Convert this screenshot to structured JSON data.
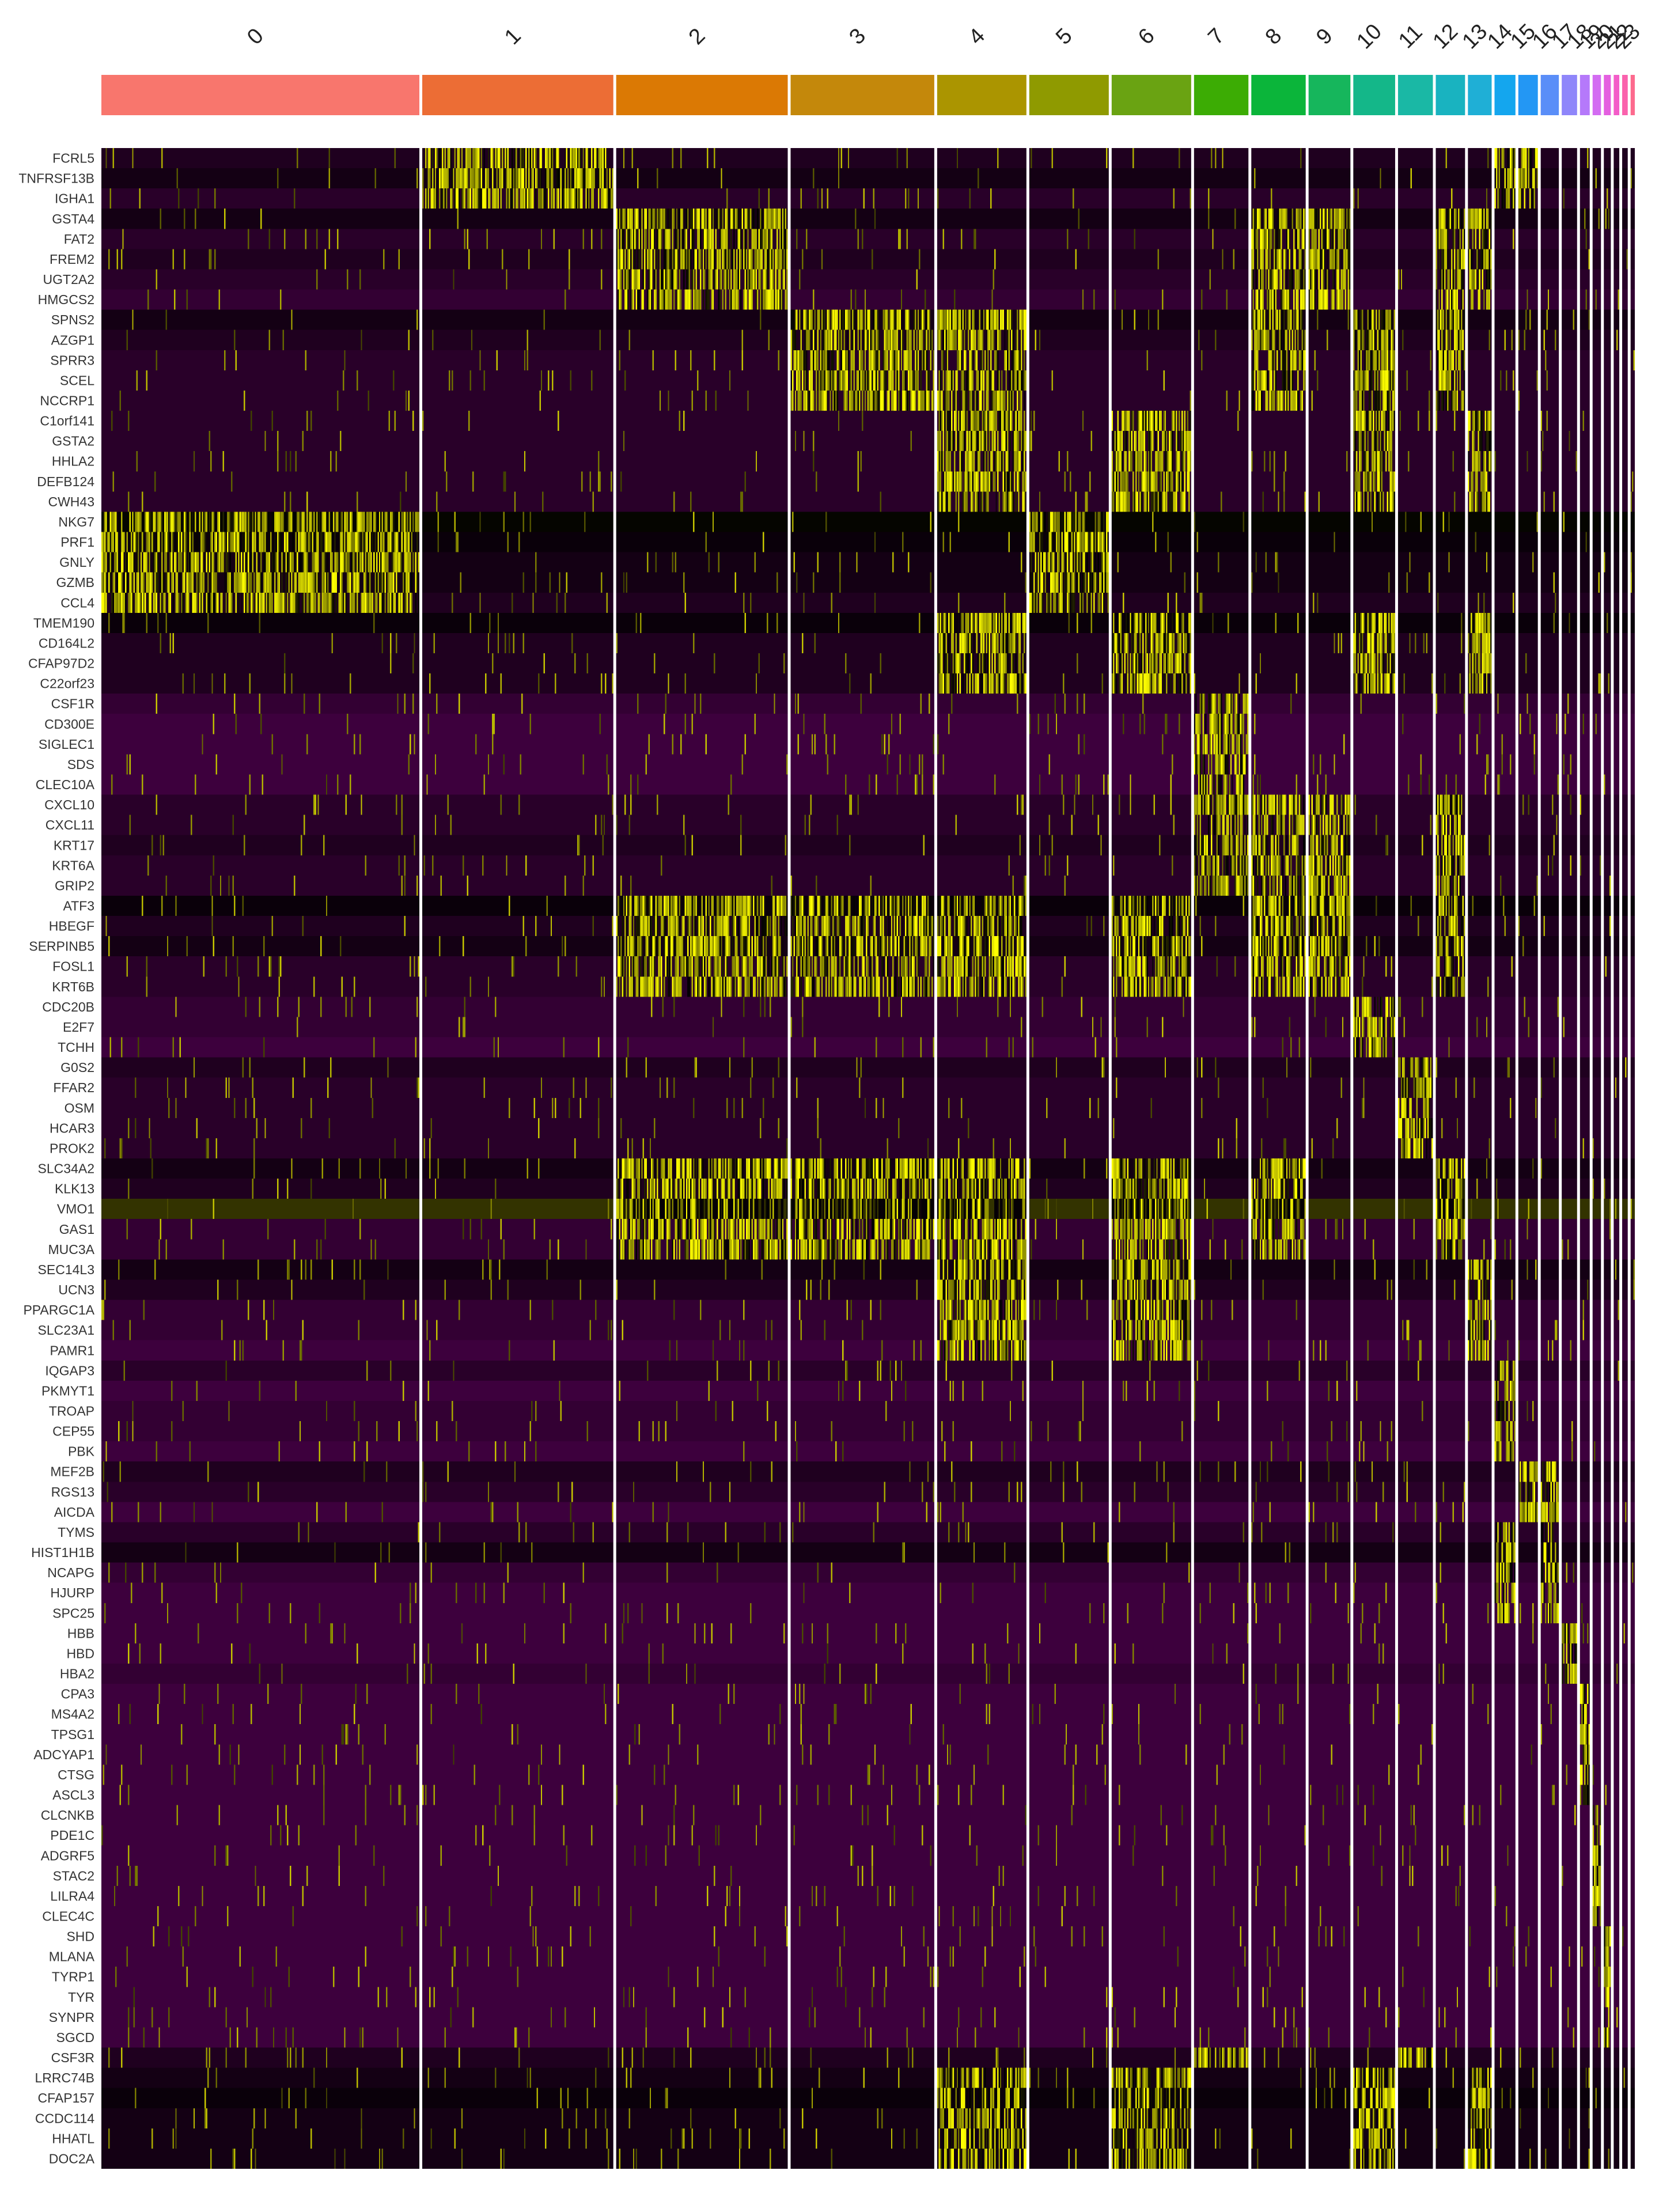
{
  "chart_data": {
    "type": "heatmap",
    "title": "",
    "xlabel": "",
    "ylabel": "",
    "legend": "none",
    "grid": false,
    "color_scale": {
      "low": "#ff00ff",
      "mid": "#000000",
      "high": "#ffff00"
    },
    "clusters": [
      {
        "label": "0",
        "cells": 228,
        "color": "#f8766d"
      },
      {
        "label": "1",
        "cells": 137,
        "color": "#ec6d35"
      },
      {
        "label": "2",
        "cells": 123,
        "color": "#db7904"
      },
      {
        "label": "3",
        "cells": 103,
        "color": "#c4880b"
      },
      {
        "label": "4",
        "cells": 64,
        "color": "#ab9500"
      },
      {
        "label": "5",
        "cells": 57,
        "color": "#8f9a00"
      },
      {
        "label": "6",
        "cells": 57,
        "color": "#6aa312"
      },
      {
        "label": "7",
        "cells": 39,
        "color": "#3cac04"
      },
      {
        "label": "8",
        "cells": 39,
        "color": "#0bb53a"
      },
      {
        "label": "9",
        "cells": 30,
        "color": "#16b65c"
      },
      {
        "label": "10",
        "cells": 30,
        "color": "#14b789"
      },
      {
        "label": "11",
        "cells": 25,
        "color": "#1ab8a5"
      },
      {
        "label": "12",
        "cells": 21,
        "color": "#19b3c0"
      },
      {
        "label": "13",
        "cells": 17,
        "color": "#1fafd6"
      },
      {
        "label": "14",
        "cells": 15,
        "color": "#14a6ee"
      },
      {
        "label": "15",
        "cells": 14,
        "color": "#2397f4"
      },
      {
        "label": "16",
        "cells": 13,
        "color": "#5a8ef8"
      },
      {
        "label": "17",
        "cells": 11,
        "color": "#8f86fa"
      },
      {
        "label": "18",
        "cells": 7,
        "color": "#b579fa"
      },
      {
        "label": "19",
        "cells": 6,
        "color": "#d36cf2"
      },
      {
        "label": "20",
        "cells": 5,
        "color": "#e45fe0"
      },
      {
        "label": "21",
        "cells": 4,
        "color": "#f35cc8"
      },
      {
        "label": "22",
        "cells": 4,
        "color": "#fa62ad"
      },
      {
        "label": "23",
        "cells": 3,
        "color": "#fd6a8e"
      }
    ],
    "genes": [
      "FCRL5",
      "TNFRSF13B",
      "IGHA1",
      "GSTA4",
      "FAT2",
      "FREM2",
      "UGT2A2",
      "HMGCS2",
      "SPNS2",
      "AZGP1",
      "SPRR3",
      "SCEL",
      "NCCRP1",
      "C1orf141",
      "GSTA2",
      "HHLA2",
      "DEFB124",
      "CWH43",
      "NKG7",
      "PRF1",
      "GNLY",
      "GZMB",
      "CCL4",
      "TMEM190",
      "CD164L2",
      "CFAP97D2",
      "C22orf23",
      "CSF1R",
      "CD300E",
      "SIGLEC1",
      "SDS",
      "CLEC10A",
      "CXCL10",
      "CXCL11",
      "KRT17",
      "KRT6A",
      "GRIP2",
      "ATF3",
      "HBEGF",
      "SERPINB5",
      "FOSL1",
      "KRT6B",
      "CDC20B",
      "E2F7",
      "TCHH",
      "G0S2",
      "FFAR2",
      "OSM",
      "HCAR3",
      "PROK2",
      "SLC34A2",
      "KLK13",
      "VMO1",
      "GAS1",
      "MUC3A",
      "SEC14L3",
      "UCN3",
      "PPARGC1A",
      "SLC23A1",
      "PAMR1",
      "IQGAP3",
      "PKMYT1",
      "TROAP",
      "CEP55",
      "PBK",
      "MEF2B",
      "RGS13",
      "AICDA",
      "TYMS",
      "HIST1H1B",
      "NCAPG",
      "HJURP",
      "SPC25",
      "HBB",
      "HBD",
      "HBA2",
      "CPA3",
      "MS4A2",
      "TPSG1",
      "ADCYAP1",
      "CTSG",
      "ASCL3",
      "CLCNKB",
      "PDE1C",
      "ADGRF5",
      "STAC2",
      "LILRA4",
      "CLEC4C",
      "SHD",
      "MLANA",
      "TYRP1",
      "TYR",
      "SYNPR",
      "SGCD",
      "CSF3R",
      "LRRC74B",
      "CFAP157",
      "CCDC114",
      "HHATL",
      "DOC2A"
    ],
    "baseline": [
      -0.3,
      -0.2,
      -0.4,
      -0.2,
      -0.4,
      -0.3,
      -0.4,
      -0.5,
      -0.2,
      -0.3,
      -0.4,
      -0.4,
      -0.4,
      -0.4,
      -0.4,
      -0.4,
      -0.4,
      -0.4,
      0.05,
      -0.1,
      -0.2,
      -0.2,
      -0.3,
      -0.1,
      -0.3,
      -0.3,
      -0.3,
      -0.5,
      -0.6,
      -0.6,
      -0.6,
      -0.6,
      -0.4,
      -0.4,
      -0.3,
      -0.4,
      -0.4,
      -0.1,
      -0.3,
      -0.2,
      -0.4,
      -0.4,
      -0.5,
      -0.5,
      -0.6,
      -0.3,
      -0.4,
      -0.4,
      -0.4,
      -0.4,
      -0.2,
      -0.3,
      0.5,
      -0.5,
      -0.5,
      -0.2,
      -0.3,
      -0.5,
      -0.5,
      -0.6,
      -0.4,
      -0.6,
      -0.5,
      -0.5,
      -0.6,
      -0.3,
      -0.4,
      -0.6,
      -0.4,
      -0.2,
      -0.5,
      -0.6,
      -0.6,
      -0.6,
      -0.6,
      -0.5,
      -0.6,
      -0.6,
      -0.6,
      -0.6,
      -0.6,
      -0.6,
      -0.6,
      -0.6,
      -0.6,
      -0.6,
      -0.6,
      -0.6,
      -0.6,
      -0.6,
      -0.6,
      -0.6,
      -0.6,
      -0.6,
      -0.3,
      -0.2,
      -0.1,
      -0.2,
      -0.2,
      -0.2
    ],
    "marker_blocks": [
      {
        "genes": [
          0,
          2
        ],
        "clusters": [
          1,
          14,
          15
        ]
      },
      {
        "genes": [
          3,
          7
        ],
        "clusters": [
          2,
          8,
          9,
          12,
          13
        ]
      },
      {
        "genes": [
          8,
          12
        ],
        "clusters": [
          3,
          4,
          8,
          10,
          12
        ]
      },
      {
        "genes": [
          13,
          17
        ],
        "clusters": [
          4,
          6,
          10,
          13
        ]
      },
      {
        "genes": [
          18,
          22
        ],
        "clusters": [
          0,
          5
        ]
      },
      {
        "genes": [
          23,
          26
        ],
        "clusters": [
          4,
          6,
          10,
          13
        ]
      },
      {
        "genes": [
          27,
          31
        ],
        "clusters": [
          7
        ]
      },
      {
        "genes": [
          32,
          36
        ],
        "clusters": [
          7,
          8,
          9,
          12
        ]
      },
      {
        "genes": [
          37,
          41
        ],
        "clusters": [
          2,
          3,
          4,
          6,
          8,
          9,
          12
        ]
      },
      {
        "genes": [
          42,
          44
        ],
        "clusters": [
          10
        ]
      },
      {
        "genes": [
          45,
          49
        ],
        "clusters": [
          11
        ]
      },
      {
        "genes": [
          50,
          54
        ],
        "clusters": [
          2,
          3,
          4,
          6,
          8,
          12
        ]
      },
      {
        "genes": [
          55,
          59
        ],
        "clusters": [
          4,
          6,
          13
        ]
      },
      {
        "genes": [
          60,
          64
        ],
        "clusters": [
          14
        ]
      },
      {
        "genes": [
          65,
          67
        ],
        "clusters": [
          15,
          16
        ]
      },
      {
        "genes": [
          68,
          72
        ],
        "clusters": [
          14,
          16
        ]
      },
      {
        "genes": [
          73,
          75
        ],
        "clusters": [
          17
        ]
      },
      {
        "genes": [
          76,
          81
        ],
        "clusters": [
          18
        ]
      },
      {
        "genes": [
          82,
          87
        ],
        "clusters": [
          19
        ]
      },
      {
        "genes": [
          88,
          93
        ],
        "clusters": [
          20
        ]
      },
      {
        "genes": [
          94,
          94
        ],
        "clusters": [
          7,
          11
        ]
      },
      {
        "genes": [
          95,
          99
        ],
        "clusters": [
          4,
          6,
          10,
          13
        ]
      }
    ]
  }
}
